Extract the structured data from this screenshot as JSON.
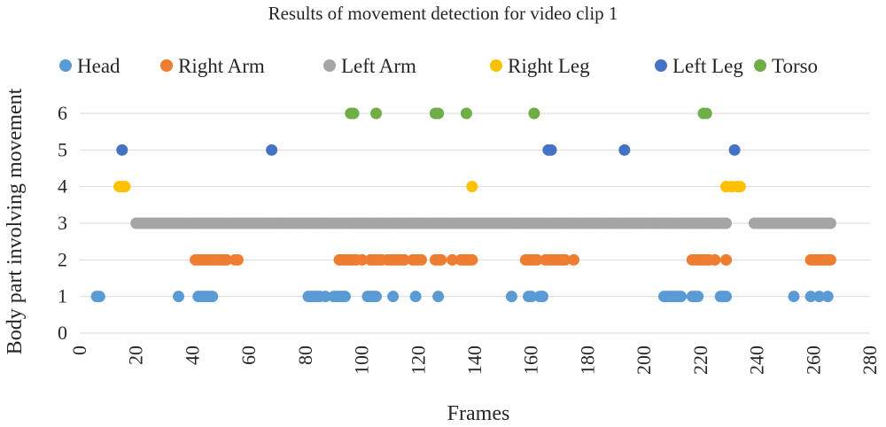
{
  "chart_data": {
    "type": "scatter",
    "title": "Results of movement detection for video clip 1",
    "xlabel": "Frames",
    "ylabel": "Body part involving movement",
    "xlim": [
      0,
      280
    ],
    "ylim": [
      0,
      6
    ],
    "xticks": [
      "0",
      "20",
      "40",
      "60",
      "80",
      "100",
      "120",
      "140",
      "160",
      "180",
      "200",
      "220",
      "240",
      "260",
      "280"
    ],
    "yticks": [
      "0",
      "1",
      "2",
      "3",
      "4",
      "5",
      "6"
    ],
    "grid": "horizontal",
    "legend_position": "top",
    "series": [
      {
        "name": "Head",
        "color": "#5B9BD5",
        "y": 1,
        "x": [
          6,
          7,
          35,
          42,
          43,
          44,
          45,
          46,
          47,
          81,
          82,
          83,
          84,
          85,
          87,
          90,
          91,
          92,
          93,
          94,
          102,
          103,
          104,
          105,
          111,
          119,
          127,
          153,
          159,
          160,
          163,
          164,
          207,
          208,
          209,
          210,
          211,
          212,
          213,
          217,
          218,
          219,
          227,
          228,
          229,
          253,
          259,
          262,
          265
        ]
      },
      {
        "name": "Right Arm",
        "color": "#ED7D31",
        "y": 2,
        "x": [
          41,
          42,
          43,
          44,
          45,
          46,
          47,
          48,
          49,
          50,
          51,
          52,
          55,
          56,
          92,
          93,
          94,
          95,
          96,
          97,
          98,
          100,
          103,
          104,
          105,
          106,
          107,
          109,
          110,
          111,
          112,
          113,
          114,
          115,
          118,
          119,
          120,
          121,
          126,
          127,
          128,
          132,
          135,
          136,
          137,
          138,
          139,
          158,
          159,
          160,
          161,
          162,
          165,
          166,
          167,
          168,
          169,
          170,
          171,
          172,
          175,
          217,
          218,
          219,
          220,
          221,
          222,
          223,
          225,
          229,
          259,
          260,
          261,
          262,
          263,
          264,
          265,
          266
        ]
      },
      {
        "name": "Left Arm",
        "color": "#A5A5A5",
        "y": 3,
        "x_range": [
          20,
          229
        ],
        "x_extra": [
          239,
          240,
          241,
          242,
          243,
          244,
          245,
          246,
          247,
          248,
          249,
          250,
          251,
          252,
          253,
          254,
          255,
          256,
          257,
          258,
          259,
          260,
          261,
          262,
          263,
          264,
          265,
          266
        ]
      },
      {
        "name": "Right Leg",
        "color": "#FFC000",
        "points": [
          [
            14,
            4
          ],
          [
            15,
            4
          ],
          [
            16,
            4
          ],
          [
            139,
            4
          ],
          [
            229,
            4
          ],
          [
            231,
            4
          ],
          [
            233,
            4
          ],
          [
            234,
            4
          ]
        ]
      },
      {
        "name": "Left Leg",
        "color": "#4472C4",
        "points": [
          [
            15,
            5
          ],
          [
            68,
            5
          ],
          [
            166,
            5
          ],
          [
            167,
            5
          ],
          [
            193,
            5
          ],
          [
            232,
            5
          ]
        ]
      },
      {
        "name": "Torso",
        "color": "#70AD47",
        "points": [
          [
            96,
            6
          ],
          [
            97,
            6
          ],
          [
            105,
            6
          ],
          [
            126,
            6
          ],
          [
            127,
            6
          ],
          [
            137,
            6
          ],
          [
            161,
            6
          ],
          [
            221,
            6
          ],
          [
            222,
            6
          ]
        ]
      }
    ]
  }
}
